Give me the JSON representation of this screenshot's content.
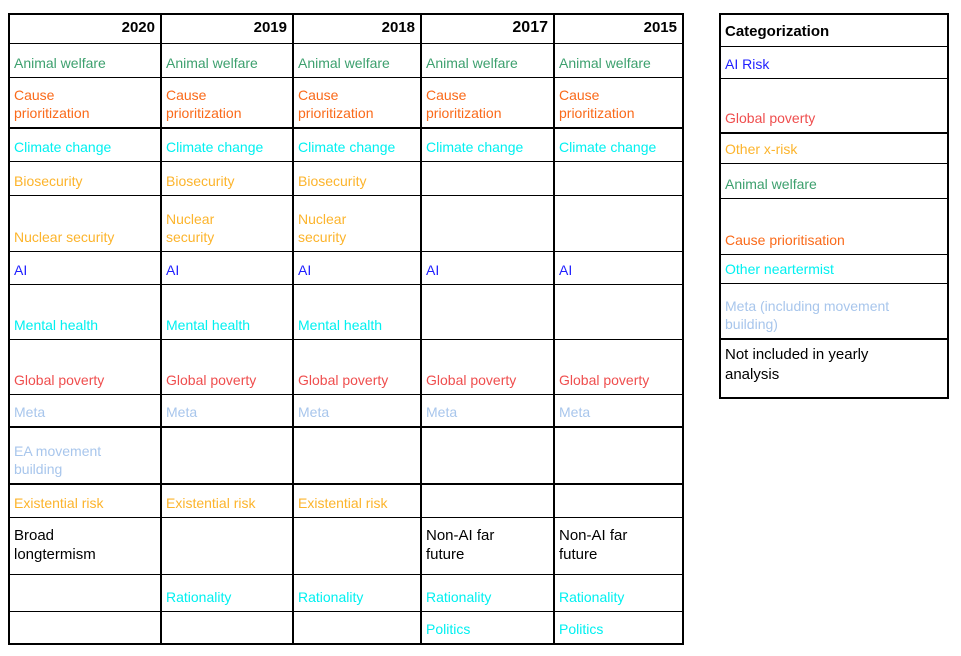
{
  "colors": {
    "green": "#3da06e",
    "orange_red": "#fa6a1a",
    "cyan": "#00f0f0",
    "amber": "#fcb42c",
    "blue": "#1f1fff",
    "red": "#ef4e4e",
    "light_blue": "#a8c6ec",
    "black": "#000000"
  },
  "chart_data": {
    "type": "table",
    "columns": [
      "2020",
      "2019",
      "2018",
      "2017",
      "2015"
    ],
    "rows": [
      {
        "name": "animal-welfare",
        "cells": [
          {
            "text": "Animal welfare",
            "color": "green"
          },
          {
            "text": "Animal welfare",
            "color": "green"
          },
          {
            "text": "Animal welfare",
            "color": "green"
          },
          {
            "text": "Animal welfare",
            "color": "green"
          },
          {
            "text": "Animal welfare",
            "color": "green"
          }
        ]
      },
      {
        "name": "cause-prioritization",
        "cells": [
          {
            "text": "Cause\nprioritization",
            "color": "orange_red"
          },
          {
            "text": "Cause\nprioritization",
            "color": "orange_red"
          },
          {
            "text": "Cause\nprioritization",
            "color": "orange_red"
          },
          {
            "text": "Cause\nprioritization",
            "color": "orange_red"
          },
          {
            "text": "Cause\nprioritization",
            "color": "orange_red"
          }
        ]
      },
      {
        "name": "climate-change",
        "cells": [
          {
            "text": "Climate change",
            "color": "cyan"
          },
          {
            "text": "Climate change",
            "color": "cyan"
          },
          {
            "text": "Climate change",
            "color": "cyan"
          },
          {
            "text": "Climate change",
            "color": "cyan"
          },
          {
            "text": "Climate change",
            "color": "cyan"
          }
        ]
      },
      {
        "name": "biosecurity",
        "cells": [
          {
            "text": "Biosecurity",
            "color": "amber"
          },
          {
            "text": "Biosecurity",
            "color": "amber"
          },
          {
            "text": "Biosecurity",
            "color": "amber"
          },
          null,
          null
        ]
      },
      {
        "name": "nuclear-security",
        "cells": [
          {
            "text": "Nuclear security",
            "color": "amber"
          },
          {
            "text": "Nuclear\nsecurity",
            "color": "amber"
          },
          {
            "text": "Nuclear\nsecurity",
            "color": "amber"
          },
          null,
          null
        ]
      },
      {
        "name": "ai",
        "cells": [
          {
            "text": "AI",
            "color": "blue"
          },
          {
            "text": "AI",
            "color": "blue"
          },
          {
            "text": "AI",
            "color": "blue"
          },
          {
            "text": "AI",
            "color": "blue"
          },
          {
            "text": "AI",
            "color": "blue"
          }
        ]
      },
      {
        "name": "mental-health",
        "cells": [
          {
            "text": "Mental health",
            "color": "cyan"
          },
          {
            "text": "Mental health",
            "color": "cyan"
          },
          {
            "text": "Mental health",
            "color": "cyan"
          },
          null,
          null
        ]
      },
      {
        "name": "global-poverty",
        "cells": [
          {
            "text": "Global poverty",
            "color": "red"
          },
          {
            "text": "Global poverty",
            "color": "red"
          },
          {
            "text": "Global poverty",
            "color": "red"
          },
          {
            "text": "Global poverty",
            "color": "red"
          },
          {
            "text": "Global poverty",
            "color": "red"
          }
        ]
      },
      {
        "name": "meta",
        "cells": [
          {
            "text": "Meta",
            "color": "light_blue"
          },
          {
            "text": "Meta",
            "color": "light_blue"
          },
          {
            "text": "Meta",
            "color": "light_blue"
          },
          {
            "text": "Meta",
            "color": "light_blue"
          },
          {
            "text": "Meta",
            "color": "light_blue"
          }
        ]
      },
      {
        "name": "ea-movement-building",
        "cells": [
          {
            "text": "EA movement\nbuilding",
            "color": "light_blue"
          },
          null,
          null,
          null,
          null
        ]
      },
      {
        "name": "existential-risk",
        "cells": [
          {
            "text": "Existential risk",
            "color": "amber"
          },
          {
            "text": "Existential risk",
            "color": "amber"
          },
          {
            "text": "Existential risk",
            "color": "amber"
          },
          null,
          null
        ]
      },
      {
        "name": "longtermism",
        "cells": [
          {
            "text": "Broad\nlongtermism",
            "color": "black"
          },
          null,
          null,
          {
            "text": "Non-AI far\nfuture",
            "color": "black"
          },
          {
            "text": "Non-AI far\nfuture",
            "color": "black"
          }
        ]
      },
      {
        "name": "rationality",
        "cells": [
          null,
          {
            "text": "Rationality",
            "color": "cyan"
          },
          {
            "text": "Rationality",
            "color": "cyan"
          },
          {
            "text": "Rationality",
            "color": "cyan"
          },
          {
            "text": "Rationality",
            "color": "cyan"
          }
        ]
      },
      {
        "name": "politics",
        "cells": [
          null,
          null,
          null,
          {
            "text": "Politics",
            "color": "cyan"
          },
          {
            "text": "Politics",
            "color": "cyan"
          }
        ]
      }
    ],
    "legend": {
      "title": "Categorization",
      "rows": [
        {
          "name": "ai-risk",
          "text": "AI Risk",
          "color": "blue"
        },
        {
          "name": "global-poverty",
          "text": "Global poverty",
          "color": "red"
        },
        {
          "name": "other-x-risk",
          "text": "Other x-risk",
          "color": "amber"
        },
        {
          "name": "animal-welfare",
          "text": "Animal welfare",
          "color": "green"
        },
        {
          "name": "cause-prioritisation",
          "text": "Cause prioritisation",
          "color": "orange_red"
        },
        {
          "name": "other-neartermist",
          "text": "Other neartermist",
          "color": "cyan"
        },
        {
          "name": "meta-including-movement-building",
          "text": "Meta (including movement\nbuilding)",
          "color": "light_blue"
        },
        {
          "name": "not-included-in-yearly-analysis",
          "text": "Not included in yearly\nanalysis",
          "color": "black"
        }
      ]
    }
  }
}
